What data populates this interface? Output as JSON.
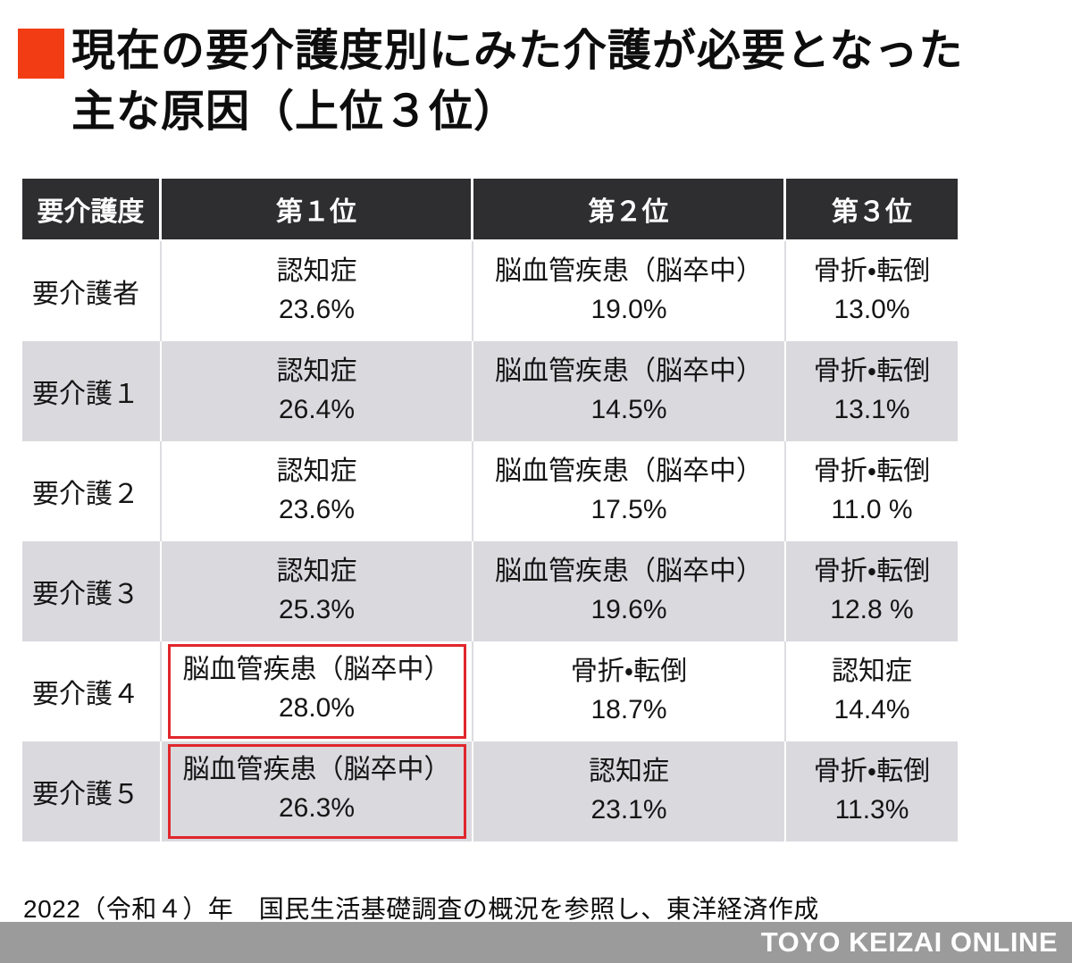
{
  "title": {
    "line1": "現在の要介護度別にみた介護が必要となった",
    "line2": "主な原因（上位３位）",
    "accent_color": "#f23c14"
  },
  "table": {
    "header_bg": "#2e2e31",
    "row_alt_bg": "#d9d9de",
    "highlight_color": "#e0262c",
    "headers": [
      "要介護度",
      "第１位",
      "第２位",
      "第３位"
    ],
    "rows": [
      {
        "level": "要介護者",
        "cells": [
          {
            "cause": "認知症",
            "pct": "23.6%"
          },
          {
            "cause": "脳血管疾患（脳卒中）",
            "pct": "19.0%"
          },
          {
            "cause": "骨折・転倒",
            "pct": "13.0%"
          }
        ]
      },
      {
        "level": "要介護１",
        "cells": [
          {
            "cause": "認知症",
            "pct": "26.4%"
          },
          {
            "cause": "脳血管疾患（脳卒中）",
            "pct": "14.5%"
          },
          {
            "cause": "骨折・転倒",
            "pct": "13.1%"
          }
        ]
      },
      {
        "level": "要介護２",
        "cells": [
          {
            "cause": "認知症",
            "pct": "23.6%"
          },
          {
            "cause": "脳血管疾患（脳卒中）",
            "pct": "17.5%"
          },
          {
            "cause": "骨折・転倒",
            "pct": "11.0 %"
          }
        ]
      },
      {
        "level": "要介護３",
        "cells": [
          {
            "cause": "認知症",
            "pct": "25.3%"
          },
          {
            "cause": "脳血管疾患（脳卒中）",
            "pct": "19.6%"
          },
          {
            "cause": "骨折・転倒",
            "pct": "12.8  %"
          }
        ]
      },
      {
        "level": "要介護４",
        "cells": [
          {
            "cause": "脳血管疾患（脳卒中）",
            "pct": "28.0%",
            "highlighted": true
          },
          {
            "cause": "骨折・転倒",
            "pct": "18.7%"
          },
          {
            "cause": "認知症",
            "pct": "14.4%"
          }
        ]
      },
      {
        "level": "要介護５",
        "cells": [
          {
            "cause": "脳血管疾患（脳卒中）",
            "pct": "26.3%",
            "highlighted": true
          },
          {
            "cause": "認知症",
            "pct": "23.1%"
          },
          {
            "cause": "骨折・転倒",
            "pct": "11.3%"
          }
        ]
      }
    ]
  },
  "source_note": "2022（令和４）年　国民生活基礎調査の概況を参照し、東洋経済作成",
  "brand_bar": {
    "label": "TOYO KEIZAI ONLINE",
    "bg": "#9b9b9b"
  },
  "chart_data": {
    "type": "table",
    "title": "現在の要介護度別にみた介護が必要となった主な原因（上位３位）",
    "columns": [
      "要介護度",
      "第１位",
      "第２位",
      "第３位"
    ],
    "rows": [
      {
        "level": "要介護者",
        "rank1": {
          "cause": "認知症",
          "pct": 23.6
        },
        "rank2": {
          "cause": "脳血管疾患（脳卒中）",
          "pct": 19.0
        },
        "rank3": {
          "cause": "骨折・転倒",
          "pct": 13.0
        }
      },
      {
        "level": "要介護１",
        "rank1": {
          "cause": "認知症",
          "pct": 26.4
        },
        "rank2": {
          "cause": "脳血管疾患（脳卒中）",
          "pct": 14.5
        },
        "rank3": {
          "cause": "骨折・転倒",
          "pct": 13.1
        }
      },
      {
        "level": "要介護２",
        "rank1": {
          "cause": "認知症",
          "pct": 23.6
        },
        "rank2": {
          "cause": "脳血管疾患（脳卒中）",
          "pct": 17.5
        },
        "rank3": {
          "cause": "骨折・転倒",
          "pct": 11.0
        }
      },
      {
        "level": "要介護３",
        "rank1": {
          "cause": "認知症",
          "pct": 25.3
        },
        "rank2": {
          "cause": "脳血管疾患（脳卒中）",
          "pct": 19.6
        },
        "rank3": {
          "cause": "骨折・転倒",
          "pct": 12.8
        }
      },
      {
        "level": "要介護４",
        "rank1": {
          "cause": "脳血管疾患（脳卒中）",
          "pct": 28.0,
          "highlighted": true
        },
        "rank2": {
          "cause": "骨折・転倒",
          "pct": 18.7
        },
        "rank3": {
          "cause": "認知症",
          "pct": 14.4
        }
      },
      {
        "level": "要介護５",
        "rank1": {
          "cause": "脳血管疾患（脳卒中）",
          "pct": 26.3,
          "highlighted": true
        },
        "rank2": {
          "cause": "認知症",
          "pct": 23.1
        },
        "rank3": {
          "cause": "骨折・転倒",
          "pct": 11.3
        }
      }
    ],
    "source": "2022（令和４）年 国民生活基礎調査の概況を参照し、東洋経済作成"
  }
}
